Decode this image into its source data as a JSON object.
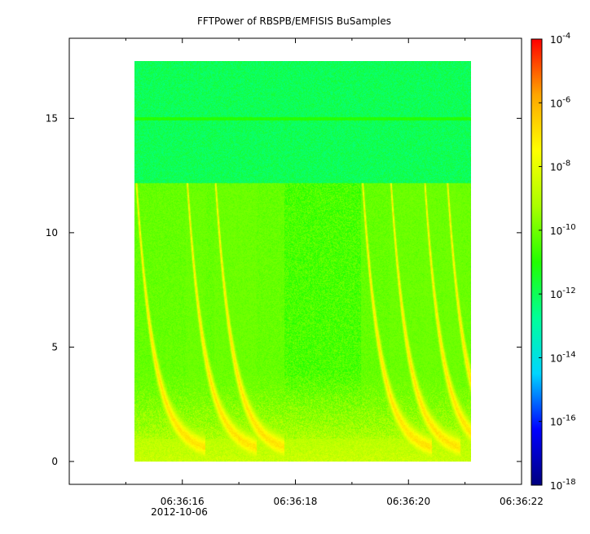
{
  "title": "FFTPower of RBSPB/EMFISIS  BuSamples",
  "chart_data": {
    "type": "heatmap",
    "title": "FFTPower of RBSPB/EMFISIS  BuSamples",
    "xlabel": "",
    "ylabel": "",
    "x_ticks": [
      {
        "label": "06:36:16",
        "t": 16
      },
      {
        "label": "06:36:18",
        "t": 18
      },
      {
        "label": "06:36:20",
        "t": 20
      },
      {
        "label": "06:36:22",
        "t": 22
      }
    ],
    "x_minor_ticks": [
      15,
      17,
      19,
      21
    ],
    "x_date_label": "2012-10-06",
    "xlim_seconds_after_06_36_00": [
      14.0,
      22.0
    ],
    "data_x_extent_seconds": [
      15.15,
      21.1
    ],
    "y_ticks": [
      0,
      5,
      10,
      15
    ],
    "ylim": [
      -1.0,
      18.5
    ],
    "data_y_extent": [
      0,
      17.5
    ],
    "colorbar": {
      "scale": "log",
      "range": [
        1e-18,
        0.0001
      ],
      "tick_labels": [
        {
          "base": "10",
          "exp": "-4"
        },
        {
          "base": "10",
          "exp": "-6"
        },
        {
          "base": "10",
          "exp": "-8"
        },
        {
          "base": "10",
          "exp": "-10"
        },
        {
          "base": "10",
          "exp": "-12"
        },
        {
          "base": "10",
          "exp": "-14"
        },
        {
          "base": "10",
          "exp": "-16"
        },
        {
          "base": "10",
          "exp": "-18"
        }
      ],
      "colors": [
        "#00007f",
        "#0000ff",
        "#00d5ff",
        "#00ff99",
        "#22ff00",
        "#aaff00",
        "#ffff00",
        "#ffa500",
        "#ff0000"
      ]
    },
    "background_power_log10": {
      "above_12_2": -12.0,
      "below_12_2": -10.5,
      "line_at_15": -11.0
    },
    "features": [
      {
        "kind": "rising_tone_chorus",
        "approx_time_s": 15.2
      },
      {
        "kind": "rising_tone_chorus",
        "approx_time_s": 16.1
      },
      {
        "kind": "rising_tone_chorus",
        "approx_time_s": 16.6
      },
      {
        "kind": "rising_tone_chorus",
        "approx_time_s": 19.2
      },
      {
        "kind": "rising_tone_chorus",
        "approx_time_s": 19.7
      },
      {
        "kind": "rising_tone_chorus",
        "approx_time_s": 20.3
      },
      {
        "kind": "rising_tone_chorus",
        "approx_time_s": 20.7
      }
    ]
  }
}
